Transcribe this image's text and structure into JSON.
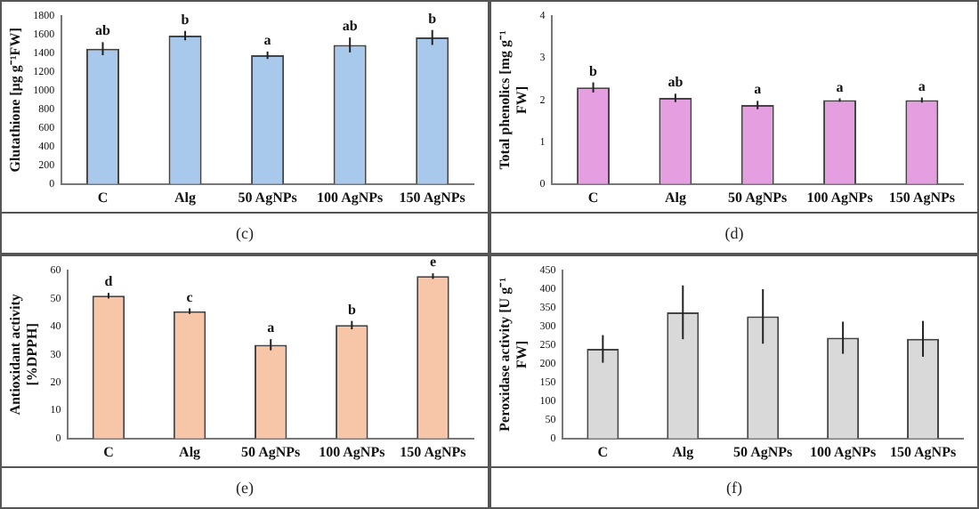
{
  "chart_data": [
    {
      "type": "bar",
      "ylabel": "Glutathione [µg g⁻¹FW]",
      "categories": [
        "C",
        "Alg",
        "50 AgNPs",
        "100 AgNPs",
        "150 AgNPs"
      ],
      "values": [
        1450,
        1590,
        1380,
        1490,
        1570
      ],
      "errors": [
        70,
        50,
        40,
        80,
        80
      ],
      "color": "#a9c9ec",
      "ylim": [
        0,
        1800
      ],
      "yticks": [
        0,
        200,
        400,
        600,
        800,
        1000,
        1200,
        1400,
        1600,
        1800
      ],
      "grid": false,
      "legend": false,
      "annotations": [
        {
          "text": "ab",
          "x": "C",
          "y": 1450
        },
        {
          "text": "b",
          "x": "Alg",
          "y": 1590
        },
        {
          "text": "a",
          "x": "50 AgNPs",
          "y": 1380
        },
        {
          "text": "ab",
          "x": "100 AgNPs",
          "y": 1490
        },
        {
          "text": "b",
          "x": "150 AgNPs",
          "y": 1570
        },
        "(c)"
      ]
    },
    {
      "type": "bar",
      "ylabel": "Total phenolics [mg g⁻¹ FW]",
      "categories": [
        "C",
        "Alg",
        "50 AgNPs",
        "100 AgNPs",
        "150 AgNPs"
      ],
      "values": [
        2.3,
        2.05,
        1.88,
        2.0,
        2.0
      ],
      "errors": [
        0.12,
        0.1,
        0.1,
        0.04,
        0.06
      ],
      "color": "#e59ee0",
      "ylim": [
        0,
        4
      ],
      "yticks": [
        0,
        1,
        2,
        3,
        4
      ],
      "grid": false,
      "legend": false,
      "annotations": [
        {
          "text": "b",
          "x": "C",
          "y": 2.3
        },
        {
          "text": "ab",
          "x": "Alg",
          "y": 2.05
        },
        {
          "text": "a",
          "x": "50 AgNPs",
          "y": 1.88
        },
        {
          "text": "a",
          "x": "100 AgNPs",
          "y": 2.0
        },
        {
          "text": "a",
          "x": "150 AgNPs",
          "y": 2.0
        },
        "(d)"
      ]
    },
    {
      "type": "bar",
      "ylabel": "Antioxidant activity [%DPPH]",
      "categories": [
        "C",
        "Alg",
        "50 AgNPs",
        "100 AgNPs",
        "150 AgNPs"
      ],
      "values": [
        51,
        45.5,
        33.5,
        40.5,
        58
      ],
      "errors": [
        1,
        1,
        2,
        1.5,
        1
      ],
      "color": "#f7c5a8",
      "ylim": [
        0,
        60
      ],
      "yticks": [
        0,
        10,
        20,
        30,
        40,
        50,
        60
      ],
      "grid": false,
      "legend": false,
      "annotations": [
        {
          "text": "d",
          "x": "C",
          "y": 51
        },
        {
          "text": "c",
          "x": "Alg",
          "y": 45.5
        },
        {
          "text": "a",
          "x": "50 AgNPs",
          "y": 33.5
        },
        {
          "text": "b",
          "x": "100 AgNPs",
          "y": 40.5
        },
        {
          "text": "e",
          "x": "150 AgNPs",
          "y": 58
        },
        "(e)"
      ]
    },
    {
      "type": "bar",
      "ylabel": "Peroxidase activity [U g⁻¹ FW]",
      "categories": [
        "C",
        "Alg",
        "50 AgNPs",
        "100 AgNPs",
        "150 AgNPs"
      ],
      "values": [
        240,
        338,
        327,
        270,
        267
      ],
      "errors": [
        37,
        72,
        73,
        43,
        48
      ],
      "color": "#d9d9d9",
      "ylim": [
        0,
        450
      ],
      "yticks": [
        0,
        50,
        100,
        150,
        200,
        250,
        300,
        350,
        400,
        450
      ],
      "grid": false,
      "legend": false,
      "annotations": [
        "(f)"
      ]
    }
  ]
}
